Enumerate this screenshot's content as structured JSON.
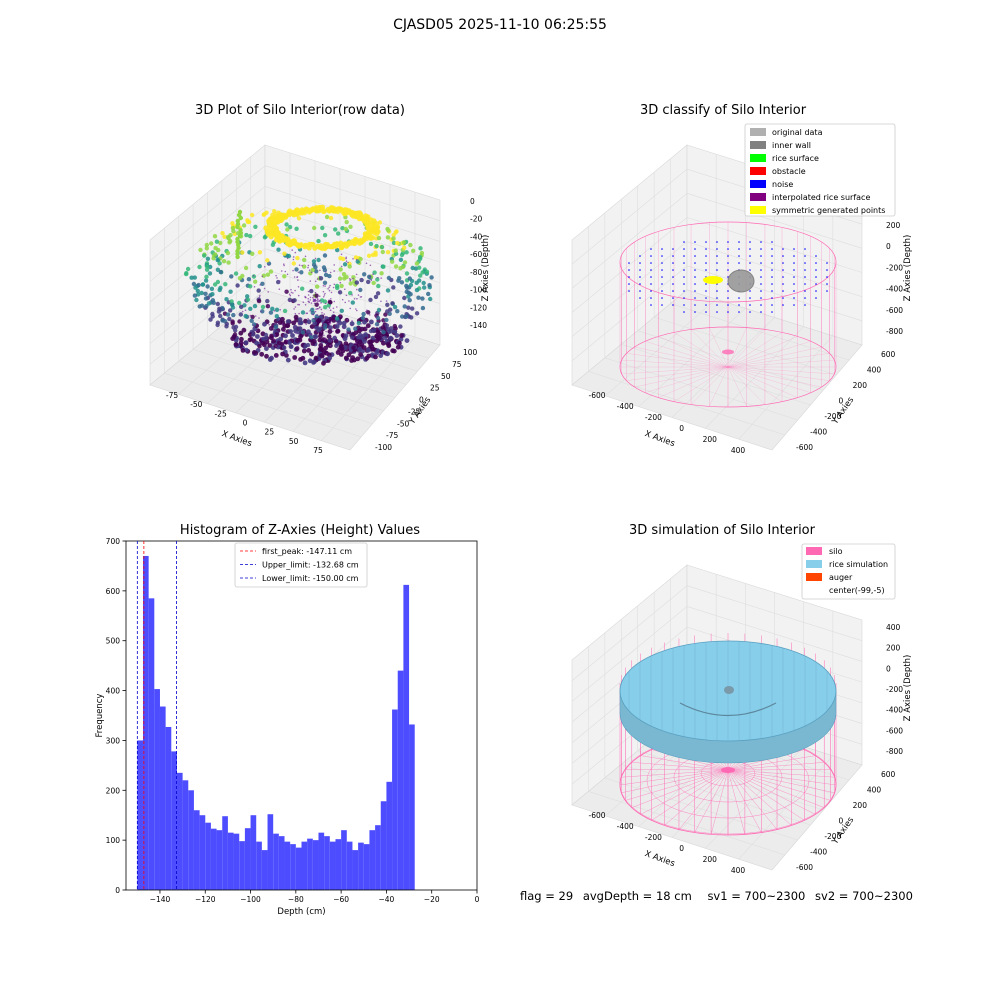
{
  "figure": {
    "suptitle": "CJASD05 2025-11-10 06:25:55",
    "status": {
      "flag": "flag = 29",
      "avg_depth": "avgDepth = 18 cm",
      "sv1": "sv1 = 700~2300",
      "sv2": "sv2 = 700~2300"
    }
  },
  "colors": {
    "hist_bar": "#4d4dff",
    "first_peak": "#ff0000",
    "limit_line": "#0000cc",
    "silo": "#ff69b4",
    "rice_simulation": "#87ceeb",
    "auger": "#ff4500",
    "original_data": "#b0b0b0",
    "inner_wall": "#808080",
    "rice_surface": "#00ff00",
    "obstacle": "#ff0000",
    "noise": "#0000ff",
    "interpolated_rice_surface": "#800080",
    "symmetric_generated_points": "#ffff00"
  },
  "chart_data": [
    {
      "type": "scatter",
      "projection": "3d",
      "title": "3D Plot of Silo Interior(row data)",
      "xlabel": "X Axies",
      "ylabel": "Y Axies",
      "zlabel": "Z Axies (Depth)",
      "x_ticks": [
        "-75",
        "-50",
        "-25",
        "0",
        "25",
        "50",
        "75"
      ],
      "y_ticks": [
        "-100",
        "-75",
        "-50",
        "-25",
        "0",
        "25",
        "50",
        "75",
        "100"
      ],
      "z_ticks": [
        "0",
        "-20",
        "-40",
        "-60",
        "-80",
        "-100",
        "-120",
        "-140"
      ],
      "xlim": [
        -90,
        90
      ],
      "ylim": [
        -100,
        100
      ],
      "zlim": [
        -150,
        0
      ],
      "colormap": "viridis",
      "grid": true
    },
    {
      "type": "scatter",
      "projection": "3d",
      "title": "3D classify of Silo Interior",
      "xlabel": "X Axies",
      "ylabel": "Y Axies",
      "zlabel": "Z Axies (Depth)",
      "x_ticks": [
        "-600",
        "-400",
        "-200",
        "0",
        "200",
        "400"
      ],
      "y_ticks": [
        "-600",
        "-400",
        "-200",
        "0",
        "200",
        "400",
        "600"
      ],
      "z_ticks": [
        "200",
        "0",
        "-200",
        "-400",
        "-600",
        "-800"
      ],
      "legend": [
        "original data",
        "inner wall",
        "rice surface",
        "obstacle",
        "noise",
        "interpolated rice surface",
        "symmetric generated points"
      ],
      "legend_position": "top-right",
      "grid": true
    },
    {
      "type": "bar",
      "title": "Histogram of Z-Axies (Height) Values",
      "xlabel": "Depth (cm)",
      "ylabel": "Frequency",
      "xlim": [
        -155,
        0
      ],
      "ylim": [
        0,
        700
      ],
      "x_ticks": [
        -140,
        -120,
        -100,
        -80,
        -60,
        -40,
        -20,
        0
      ],
      "y_ticks": [
        0,
        100,
        200,
        300,
        400,
        500,
        600,
        700
      ],
      "bin_width": 2.5,
      "bin_start": -150,
      "values": [
        300,
        670,
        585,
        403,
        368,
        327,
        278,
        235,
        220,
        200,
        160,
        150,
        135,
        123,
        120,
        148,
        115,
        113,
        98,
        124,
        150,
        97,
        80,
        152,
        113,
        108,
        97,
        92,
        85,
        97,
        103,
        100,
        115,
        108,
        97,
        102,
        120,
        97,
        80,
        95,
        92,
        120,
        130,
        178,
        217,
        362,
        440,
        612,
        332
      ],
      "vlines": [
        {
          "label": "first_peak: -147.11 cm",
          "x": -147.11,
          "style": "dashed"
        },
        {
          "label": "Upper_limit: -132.68 cm",
          "x": -132.68,
          "style": "dashed"
        },
        {
          "label": "Lower_limit: -150.00 cm",
          "x": -150.0,
          "style": "dashed"
        }
      ],
      "legend_position": "top-center",
      "grid": false
    },
    {
      "type": "surface",
      "projection": "3d",
      "title": "3D simulation of Silo Interior",
      "xlabel": "X Axies",
      "ylabel": "Y Axies",
      "zlabel": "Z Axies (Depth)",
      "x_ticks": [
        "-600",
        "-400",
        "-200",
        "0",
        "200",
        "400"
      ],
      "y_ticks": [
        "-600",
        "-400",
        "-200",
        "0",
        "200",
        "400",
        "600"
      ],
      "z_ticks": [
        "400",
        "200",
        "0",
        "-200",
        "-400",
        "-600",
        "-800"
      ],
      "legend": [
        "silo",
        "rice simulation",
        "auger",
        "center(-99,-5)"
      ],
      "legend_position": "top-right",
      "grid": true
    }
  ]
}
